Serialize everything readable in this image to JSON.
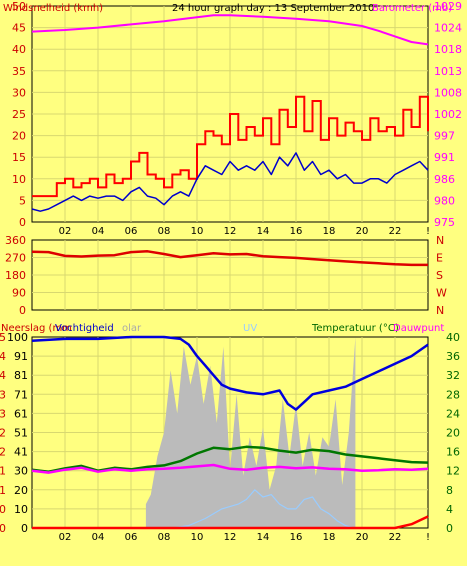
{
  "chart_data": [
    {
      "type": "line",
      "title": "24 hour graph day : 13 September 2010",
      "ylabel_left": "Windsnelheid (kmh)",
      "ylabel_right": "Barometer (mb)",
      "ylim_left": [
        0,
        50
      ],
      "yticks_left": [
        "0",
        "5",
        "10",
        "15",
        "20",
        "25",
        "30",
        "35",
        "40",
        "45",
        "50"
      ],
      "yticks_right": [
        "975",
        "980",
        "986",
        "991",
        "997",
        "1002",
        "1008",
        "1013",
        "1018",
        "1024",
        "1029"
      ],
      "xlim": [
        0,
        24
      ],
      "xticks": [
        "02",
        "04",
        "06",
        "08",
        "10",
        "12",
        "14",
        "16",
        "18",
        "20",
        "22",
        "!"
      ],
      "grid": true,
      "colors": {
        "barometer": "#FF00FF",
        "gust": "#FF0000",
        "wind": "#0000CC"
      },
      "series": [
        {
          "key": "barometer",
          "axis": "right",
          "x": [
            0,
            2,
            4,
            6,
            8,
            10,
            11,
            12,
            14,
            16,
            18,
            20,
            21,
            22,
            23,
            24
          ],
          "values": [
            1022.6,
            1023.0,
            1023.6,
            1024.4,
            1025.2,
            1026.2,
            1026.7,
            1026.7,
            1026.3,
            1025.8,
            1025.2,
            1024.0,
            1022.8,
            1021.4,
            1020.0,
            1019.4
          ]
        },
        {
          "key": "gust",
          "axis": "left",
          "x": [
            0,
            0.5,
            1.0,
            1.5,
            2.0,
            2.5,
            3.0,
            3.5,
            4.0,
            4.5,
            5.0,
            5.5,
            6.0,
            6.5,
            7.0,
            7.5,
            8.0,
            8.5,
            9.0,
            9.5,
            10.0,
            10.5,
            11.0,
            11.5,
            12.0,
            12.5,
            13.0,
            13.5,
            14.0,
            14.5,
            15.0,
            15.5,
            16.0,
            16.5,
            17.0,
            17.5,
            18.0,
            18.5,
            19.0,
            19.5,
            20.0,
            20.5,
            21.0,
            21.5,
            22.0,
            22.5,
            23.0,
            23.5,
            24.0
          ],
          "values": [
            6,
            6,
            6,
            9,
            10,
            8,
            9,
            10,
            8,
            11,
            9,
            10,
            14,
            16,
            11,
            10,
            8,
            11,
            12,
            10,
            18,
            21,
            20,
            18,
            25,
            19,
            22,
            20,
            24,
            18,
            26,
            22,
            29,
            21,
            28,
            19,
            24,
            20,
            23,
            21,
            19,
            24,
            21,
            22,
            20,
            26,
            22,
            29,
            21
          ]
        },
        {
          "key": "wind",
          "axis": "left",
          "x": [
            0,
            0.5,
            1.0,
            1.5,
            2.0,
            2.5,
            3.0,
            3.5,
            4.0,
            4.5,
            5.0,
            5.5,
            6.0,
            6.5,
            7.0,
            7.5,
            8.0,
            8.5,
            9.0,
            9.5,
            10.0,
            10.5,
            11.0,
            11.5,
            12.0,
            12.5,
            13.0,
            13.5,
            14.0,
            14.5,
            15.0,
            15.5,
            16.0,
            16.5,
            17.0,
            17.5,
            18.0,
            18.5,
            19.0,
            19.5,
            20.0,
            20.5,
            21.0,
            21.5,
            22.0,
            22.5,
            23.0,
            23.5,
            24.0
          ],
          "values": [
            3,
            2.5,
            3,
            4,
            5,
            6,
            5,
            6,
            5.5,
            6,
            6,
            5,
            7,
            8,
            6,
            5.5,
            4,
            6,
            7,
            6,
            10,
            13,
            12,
            11,
            14,
            12,
            13,
            12,
            14,
            11,
            15,
            13,
            16,
            12,
            14,
            11,
            12,
            10,
            11,
            9,
            9,
            10,
            10,
            9,
            11,
            12,
            13,
            14,
            12
          ]
        }
      ]
    },
    {
      "type": "line",
      "ylabel_left": "",
      "yticks_left": [
        "0",
        "90",
        "180",
        "270",
        "360"
      ],
      "ylim_left": [
        0,
        360
      ],
      "compass": [
        "N",
        "W",
        "S",
        "E",
        "N"
      ],
      "xlim": [
        0,
        24
      ],
      "grid": true,
      "series": [
        {
          "key": "direction",
          "color": "#DD0000",
          "x": [
            0,
            1,
            2,
            3,
            4,
            5,
            6,
            7,
            8,
            9,
            10,
            11,
            12,
            13,
            14,
            15,
            16,
            17,
            18,
            19,
            20,
            21,
            22,
            23,
            24
          ],
          "values": [
            300,
            298,
            278,
            275,
            280,
            282,
            298,
            302,
            288,
            272,
            282,
            292,
            286,
            288,
            276,
            272,
            268,
            262,
            256,
            250,
            245,
            240,
            235,
            232,
            232
          ]
        }
      ]
    },
    {
      "type": "line",
      "legend": {
        "neerslag": "Neerslag (mm",
        "vochtigheid": "Vochtigheid",
        "solar": "olar",
        "uv": "UV",
        "temperatuur": "Temperatuur (°C)",
        "dauwpunt": "Dauwpunt"
      },
      "yticks_left_rain": [
        "0",
        "0",
        "1",
        "1",
        "2",
        "2",
        "3",
        "3",
        "4",
        "4",
        "5"
      ],
      "yticks_left_hum": [
        "0",
        "10",
        "20",
        "30",
        "41",
        "51",
        "61",
        "71",
        "81",
        "91",
        "100"
      ],
      "yticks_right": [
        "0",
        "4",
        "8",
        "12",
        "16",
        "20",
        "24",
        "28",
        "32",
        "36",
        "40"
      ],
      "ylim_right": [
        0,
        40
      ],
      "ylim_hum": [
        0,
        100
      ],
      "xlim": [
        0,
        24
      ],
      "xticks": [
        "02",
        "04",
        "06",
        "08",
        "10",
        "12",
        "14",
        "16",
        "18",
        "20",
        "22",
        "!"
      ],
      "grid": true,
      "series": [
        {
          "key": "humidity",
          "axis": "hum",
          "color": "#0000DD",
          "x": [
            0,
            2,
            4,
            6,
            7,
            8,
            9,
            9.5,
            10,
            10.5,
            11,
            11.5,
            12,
            12.5,
            13,
            14,
            15,
            15.5,
            16,
            16.5,
            17,
            18,
            19,
            20,
            21,
            22,
            23,
            24
          ],
          "values": [
            98,
            99,
            99,
            100,
            100,
            100,
            99,
            96,
            90,
            85,
            80,
            75,
            73,
            72,
            71,
            70,
            72,
            65,
            62,
            66,
            70,
            72,
            74,
            78,
            82,
            86,
            90,
            96
          ]
        },
        {
          "key": "temperature",
          "axis": "right",
          "color": "#007700",
          "x": [
            0,
            1,
            2,
            3,
            4,
            5,
            6,
            7,
            8,
            9,
            10,
            11,
            12,
            13,
            14,
            15,
            16,
            17,
            18,
            19,
            20,
            21,
            22,
            23,
            24
          ],
          "values": [
            12.2,
            11.8,
            12.5,
            13.0,
            12.0,
            12.6,
            12.3,
            12.8,
            13.1,
            14.0,
            15.6,
            16.8,
            16.5,
            17.0,
            16.8,
            16.2,
            15.8,
            16.4,
            16.1,
            15.4,
            15.0,
            14.6,
            14.2,
            13.8,
            13.7
          ]
        },
        {
          "key": "dewpoint",
          "axis": "right",
          "color": "#FF00FF",
          "x": [
            0,
            1,
            2,
            3,
            4,
            5,
            6,
            7,
            8,
            9,
            10,
            11,
            12,
            13,
            14,
            15,
            16,
            17,
            18,
            19,
            20,
            21,
            22,
            23,
            24
          ],
          "values": [
            12.0,
            11.6,
            12.2,
            12.6,
            11.8,
            12.3,
            12.0,
            12.3,
            12.4,
            12.6,
            12.9,
            13.2,
            12.4,
            12.2,
            12.6,
            12.8,
            12.5,
            12.7,
            12.4,
            12.3,
            12.0,
            12.1,
            12.3,
            12.2,
            12.4
          ]
        },
        {
          "key": "solar",
          "axis": "right",
          "color": "#BBBBBB",
          "x": [
            6.9,
            7.2,
            7.6,
            8.0,
            8.4,
            8.8,
            9.2,
            9.6,
            10.0,
            10.4,
            10.8,
            11.2,
            11.6,
            12.0,
            12.4,
            12.8,
            13.2,
            13.6,
            14.0,
            14.4,
            14.8,
            15.2,
            15.6,
            16.0,
            16.4,
            16.8,
            17.2,
            17.6,
            18.0,
            18.4,
            18.8,
            19.2,
            19.6
          ],
          "values": [
            5,
            7,
            15,
            20,
            33,
            24,
            38,
            30,
            36,
            26,
            34,
            22,
            38,
            12,
            28,
            11,
            19,
            13,
            21,
            8,
            13,
            27,
            15,
            26,
            13,
            20,
            11,
            19,
            17,
            27,
            9,
            20,
            40
          ]
        },
        {
          "key": "uv",
          "axis": "right",
          "color": "#99CCFF",
          "x": [
            7.5,
            8.5,
            9.5,
            10.5,
            11.5,
            12.5,
            13.0,
            13.5,
            14.0,
            14.5,
            15.0,
            15.5,
            16.0,
            16.5,
            17.0,
            17.5,
            18.0,
            18.5,
            19.0,
            19.5
          ],
          "values": [
            0,
            0,
            0.5,
            2,
            4,
            5,
            6,
            8,
            6.5,
            7,
            5,
            4,
            4,
            6,
            6.5,
            4,
            3,
            1.5,
            0.5,
            0
          ]
        },
        {
          "key": "rain",
          "axis": "rain",
          "color": "#FF0000",
          "x": [
            0,
            22,
            23,
            24
          ],
          "values": [
            0,
            0,
            0.1,
            0.3
          ]
        }
      ]
    }
  ]
}
